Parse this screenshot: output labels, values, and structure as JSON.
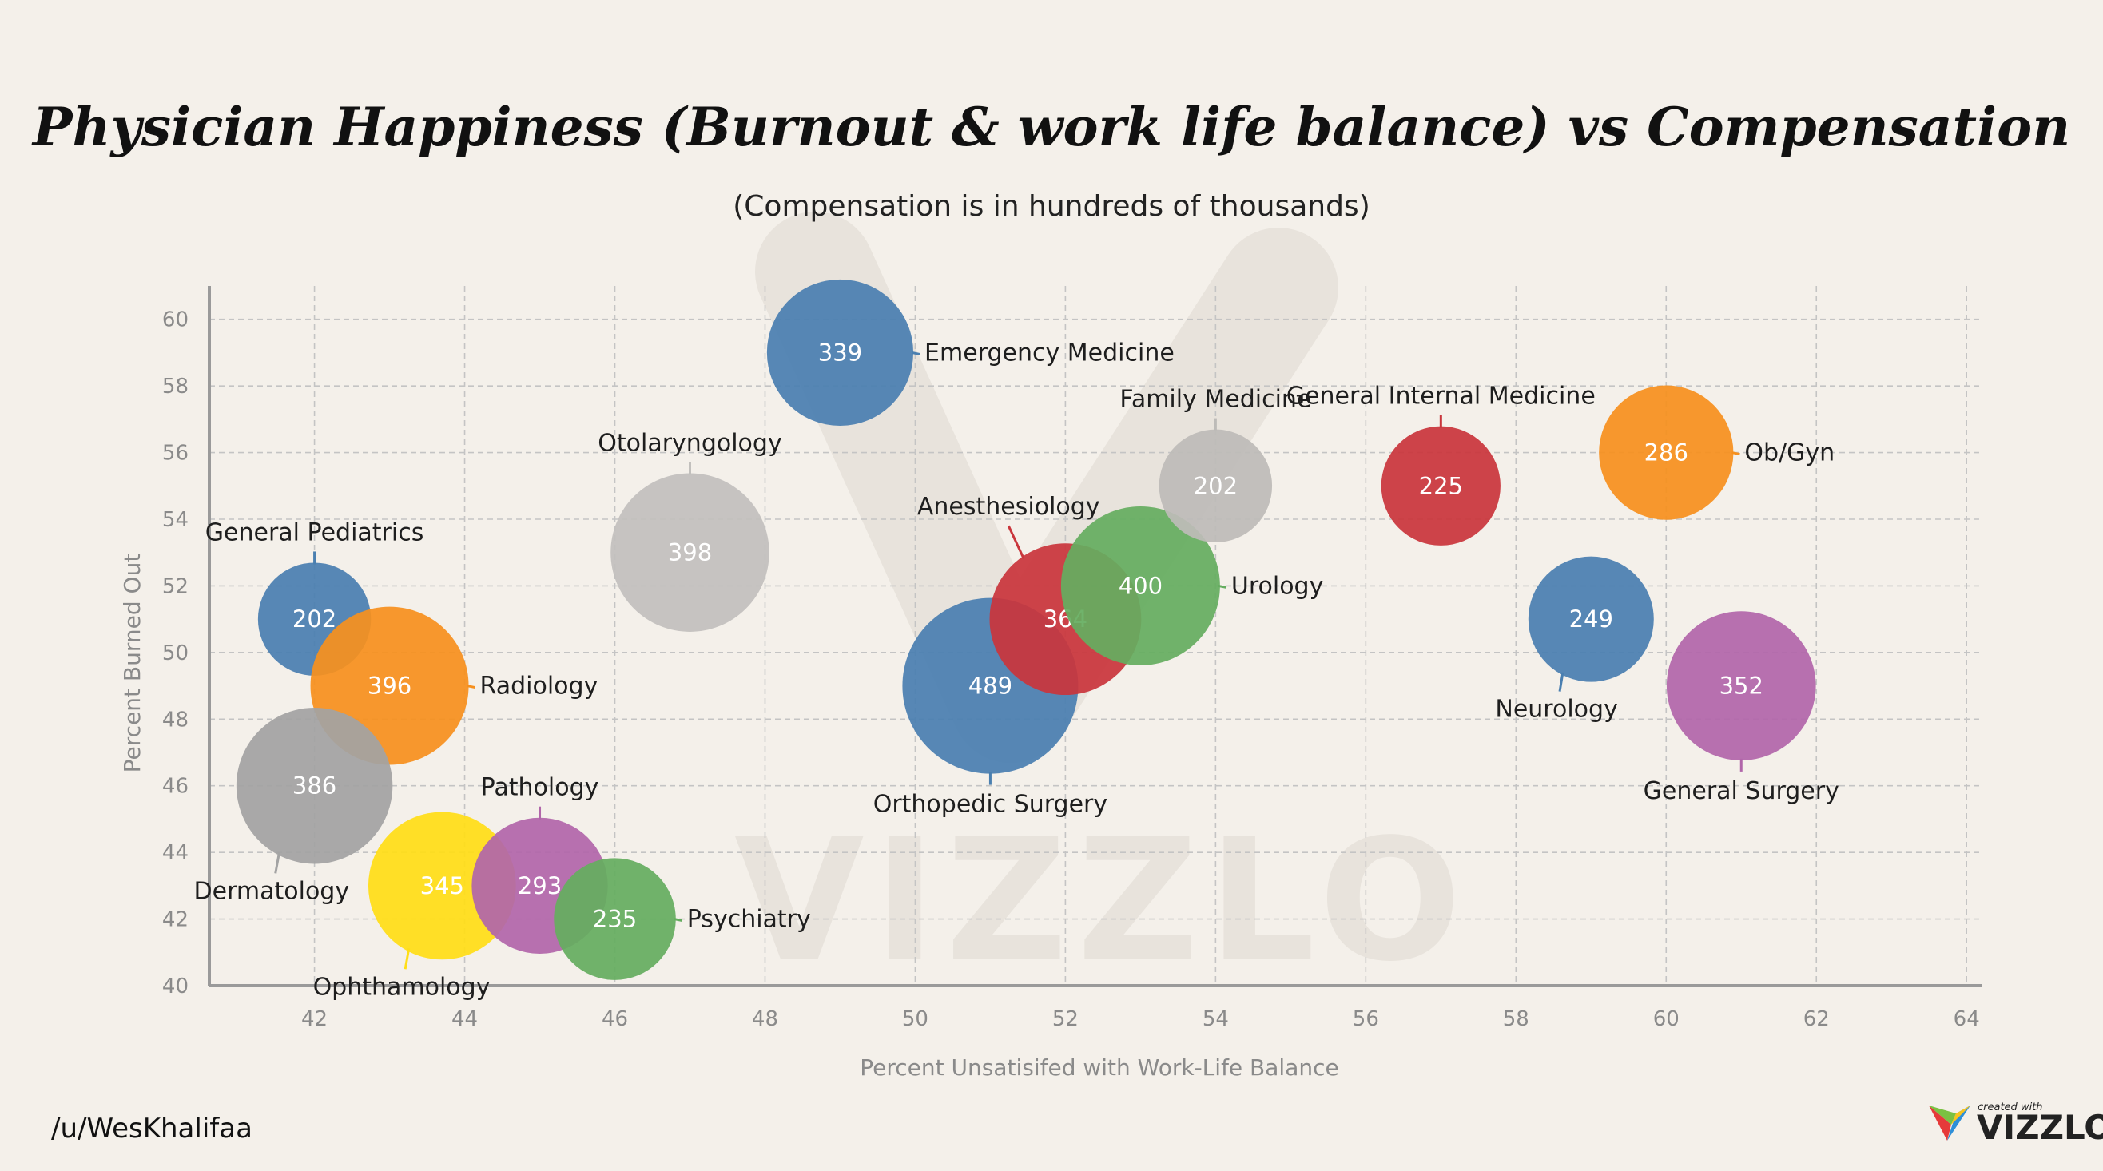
{
  "chart_data": {
    "type": "scatter",
    "title": "Physician Happiness (Burnout & work life balance) vs Compensation",
    "subtitle": "(Compensation is in hundreds of thousands)",
    "xlabel": "Percent Unsatisifed with Work-Life Balance",
    "ylabel": "Percent Burned Out",
    "xlim": [
      40.6,
      64.2
    ],
    "ylim": [
      40,
      61
    ],
    "xticks": [
      42,
      44,
      46,
      48,
      50,
      52,
      54,
      56,
      58,
      60,
      62,
      64
    ],
    "yticks": [
      40,
      42,
      44,
      46,
      48,
      50,
      52,
      54,
      56,
      58,
      60
    ],
    "grid": true,
    "legend": "none",
    "size_encoding": "compensation",
    "points": [
      {
        "name": "Emergency Medicine",
        "x": 49,
        "y": 59,
        "size": 339,
        "color": "#4a7fb0",
        "label_pos": "right"
      },
      {
        "name": "Otolaryngology",
        "x": 47,
        "y": 53,
        "size": 398,
        "color": "#c2c0bd",
        "label_pos": "top"
      },
      {
        "name": "General Pediatrics",
        "x": 42,
        "y": 51,
        "size": 202,
        "color": "#4a7fb0",
        "label_pos": "top"
      },
      {
        "name": "Radiology",
        "x": 43,
        "y": 49,
        "size": 396,
        "color": "#f6901e",
        "label_pos": "right"
      },
      {
        "name": "Dermatology",
        "x": 42,
        "y": 46,
        "size": 386,
        "color": "#a3a3a3",
        "label_pos": "bottom-left"
      },
      {
        "name": "Ophthamology",
        "x": 43.7,
        "y": 43,
        "size": 345,
        "color": "#ffde17",
        "label_pos": "bottom-left"
      },
      {
        "name": "Pathology",
        "x": 45,
        "y": 43,
        "size": 293,
        "color": "#b166aa",
        "label_pos": "top"
      },
      {
        "name": "Psychiatry",
        "x": 46,
        "y": 42,
        "size": 235,
        "color": "#65ad60",
        "label_pos": "right"
      },
      {
        "name": "Orthopedic Surgery",
        "x": 51,
        "y": 49,
        "size": 489,
        "color": "#4a7fb0",
        "label_pos": "bottom"
      },
      {
        "name": "Anesthesiology",
        "x": 52,
        "y": 51,
        "size": 364,
        "color": "#c9363c",
        "label_pos": "top-left"
      },
      {
        "name": "Urology",
        "x": 53,
        "y": 52,
        "size": 400,
        "color": "#65ad60",
        "label_pos": "right"
      },
      {
        "name": "Family Medicine",
        "x": 54,
        "y": 55,
        "size": 202,
        "color": "#bdbbb8",
        "label_pos": "top"
      },
      {
        "name": "General Internal Medicine",
        "x": 57,
        "y": 55,
        "size": 225,
        "color": "#c9363c",
        "label_pos": "top"
      },
      {
        "name": "Ob/Gyn",
        "x": 60,
        "y": 56,
        "size": 286,
        "color": "#f6901e",
        "label_pos": "right"
      },
      {
        "name": "Neurology",
        "x": 59,
        "y": 51,
        "size": 249,
        "color": "#4a7fb0",
        "label_pos": "bottom-left"
      },
      {
        "name": "General Surgery",
        "x": 61,
        "y": 49,
        "size": 352,
        "color": "#b166aa",
        "label_pos": "bottom"
      }
    ]
  },
  "footer": {
    "credit": "/u/WesKhalifaa",
    "brand_small": "created with",
    "brand_name": "VIZZLO",
    "watermark": "VIZZLO"
  },
  "colors": {
    "background": "#f4f0ea",
    "blue": "#4a7fb0",
    "orange": "#f6901e",
    "red": "#c9363c",
    "green": "#65ad60",
    "purple": "#b166aa",
    "yellow": "#ffde17",
    "gray": "#a3a3a3"
  }
}
